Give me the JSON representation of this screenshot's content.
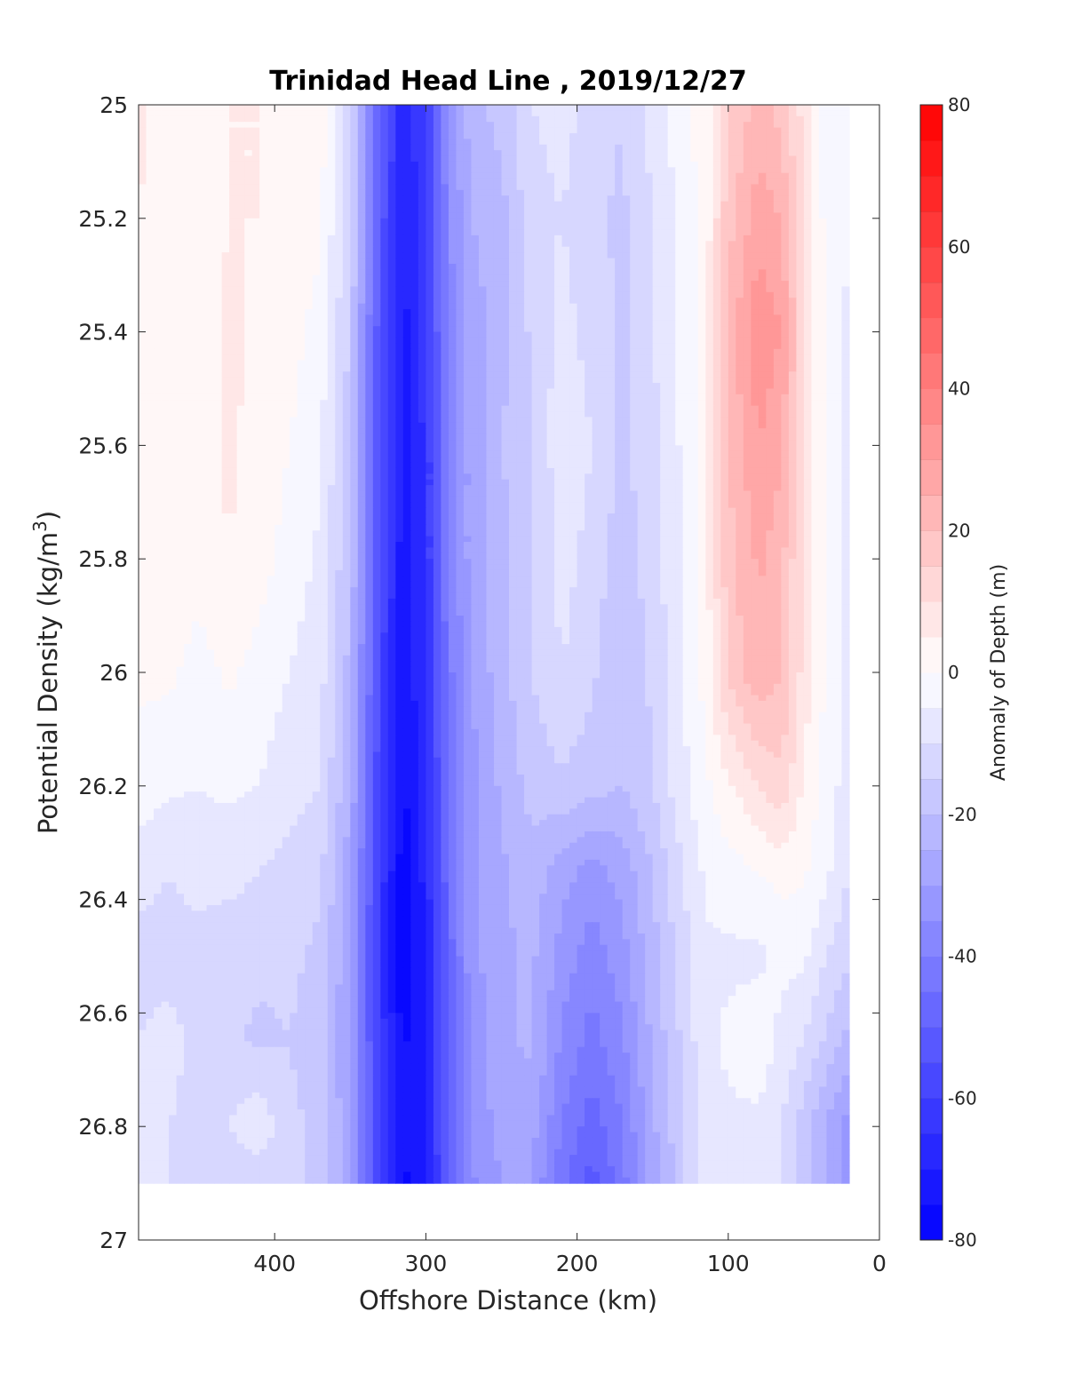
{
  "chart_data": {
    "type": "heatmap",
    "title": "Trinidad Head Line , 2019/12/27",
    "xlabel": "Offshore Distance (km)",
    "ylabel": "Potential Density (kg/m",
    "ylabel_sup": "3",
    "ylabel_close": ")",
    "colorbar_label": "Anomaly of Depth (m)",
    "xlim": [
      490,
      0
    ],
    "x_reversed": true,
    "xticks": [
      400,
      300,
      200,
      100,
      0
    ],
    "xtick_labels": [
      "400",
      "300",
      "200",
      "100",
      "0"
    ],
    "ylim": [
      25,
      27
    ],
    "y_reversed": true,
    "yticks": [
      25,
      25.2,
      25.4,
      25.6,
      25.8,
      26,
      26.2,
      26.4,
      26.6,
      26.8,
      27
    ],
    "ytick_labels": [
      "25",
      "25.2",
      "25.4",
      "25.6",
      "25.8",
      "26",
      "26.2",
      "26.4",
      "26.6",
      "26.8",
      "27"
    ],
    "clim": [
      -80,
      80
    ],
    "colorbar_ticks": [
      -80,
      -60,
      -40,
      -20,
      0,
      20,
      40,
      60,
      80
    ],
    "colorbar_tick_labels": [
      "-80",
      "-60",
      "-40",
      "-20",
      "0",
      "20",
      "40",
      "60",
      "80"
    ],
    "color_levels_step": 5,
    "colormap": {
      "low": "#0000ff",
      "mid": "#ffffff",
      "high": "#ff0000"
    },
    "data_extent": {
      "x_max": 490,
      "x_min": 20,
      "y_min": 25,
      "y_max": 26.9
    },
    "grid": {
      "x": [
        490,
        470,
        450,
        430,
        410,
        390,
        370,
        350,
        330,
        315,
        300,
        285,
        270,
        250,
        230,
        210,
        190,
        170,
        150,
        130,
        115,
        100,
        80,
        65,
        50,
        35,
        20
      ],
      "y": [
        25.0,
        25.2,
        25.4,
        25.6,
        25.8,
        26.0,
        26.2,
        26.35,
        26.5,
        26.65,
        26.8,
        26.9
      ],
      "z": [
        [
          6,
          3,
          3,
          5,
          5,
          5,
          3,
          -12,
          -50,
          -68,
          -60,
          -35,
          -22,
          -18,
          -10,
          -8,
          -12,
          -15,
          -8,
          -2,
          3,
          15,
          22,
          18,
          8,
          -2,
          -5
        ],
        [
          5,
          3,
          3,
          5,
          5,
          4,
          1,
          -14,
          -52,
          -70,
          -62,
          -36,
          -25,
          -22,
          -12,
          -10,
          -14,
          -16,
          -10,
          -3,
          2,
          18,
          28,
          25,
          10,
          -2,
          -5
        ],
        [
          5,
          3,
          3,
          6,
          4,
          2,
          -2,
          -16,
          -55,
          -72,
          -62,
          -38,
          -28,
          -22,
          -14,
          -8,
          -12,
          -16,
          -10,
          -3,
          3,
          22,
          34,
          30,
          12,
          -2,
          -6
        ],
        [
          5,
          4,
          3,
          6,
          3,
          0,
          -4,
          -18,
          -55,
          -72,
          -64,
          -40,
          -28,
          -20,
          -16,
          -6,
          -10,
          -16,
          -12,
          -4,
          3,
          20,
          30,
          26,
          10,
          -1,
          -6
        ],
        [
          4,
          3,
          2,
          5,
          2,
          -2,
          -6,
          -20,
          -56,
          -73,
          -64,
          -40,
          -28,
          -22,
          -16,
          -8,
          -12,
          -18,
          -12,
          -5,
          3,
          18,
          26,
          22,
          8,
          -1,
          -6
        ],
        [
          1,
          1,
          -2,
          1,
          -2,
          -5,
          -8,
          -22,
          -58,
          -74,
          -65,
          -42,
          -30,
          -22,
          -15,
          -10,
          -14,
          -20,
          -14,
          -6,
          2,
          16,
          24,
          20,
          8,
          -1,
          -7
        ],
        [
          -2,
          -4,
          -5,
          -4,
          -5,
          -8,
          -10,
          -25,
          -60,
          -76,
          -67,
          -44,
          -32,
          -24,
          -18,
          -16,
          -18,
          -20,
          -15,
          -6,
          -1,
          4,
          10,
          14,
          4,
          -2,
          -8
        ],
        [
          -8,
          -10,
          -8,
          -8,
          -10,
          -12,
          -14,
          -28,
          -62,
          -78,
          -68,
          -46,
          -32,
          -26,
          -22,
          -28,
          -32,
          -28,
          -20,
          -10,
          -4,
          -2,
          0,
          2,
          1,
          -4,
          -10
        ],
        [
          -12,
          -12,
          -12,
          -14,
          -14,
          -14,
          -16,
          -30,
          -64,
          -80,
          -70,
          -48,
          -32,
          -26,
          -24,
          -32,
          -38,
          -32,
          -22,
          -12,
          -6,
          -6,
          -6,
          -4,
          -4,
          -10,
          -14
        ],
        [
          -10,
          -8,
          -12,
          -14,
          -16,
          -15,
          -18,
          -30,
          -62,
          -76,
          -70,
          -48,
          -34,
          -26,
          -24,
          -36,
          -42,
          -36,
          -24,
          -14,
          -6,
          -4,
          -2,
          -6,
          -10,
          -16,
          -22
        ],
        [
          -8,
          -10,
          -12,
          -10,
          -6,
          -14,
          -16,
          -30,
          -62,
          -74,
          -70,
          -48,
          -34,
          -28,
          -28,
          -40,
          -48,
          -40,
          -26,
          -16,
          -8,
          -6,
          -6,
          -10,
          -18,
          -26,
          -32
        ],
        [
          -8,
          -10,
          -12,
          -14,
          -14,
          -14,
          -16,
          -30,
          -62,
          -76,
          -72,
          -50,
          -36,
          -30,
          -30,
          -44,
          -52,
          -42,
          -28,
          -16,
          -8,
          -6,
          -6,
          -10,
          -18,
          -26,
          -34
        ]
      ]
    }
  }
}
